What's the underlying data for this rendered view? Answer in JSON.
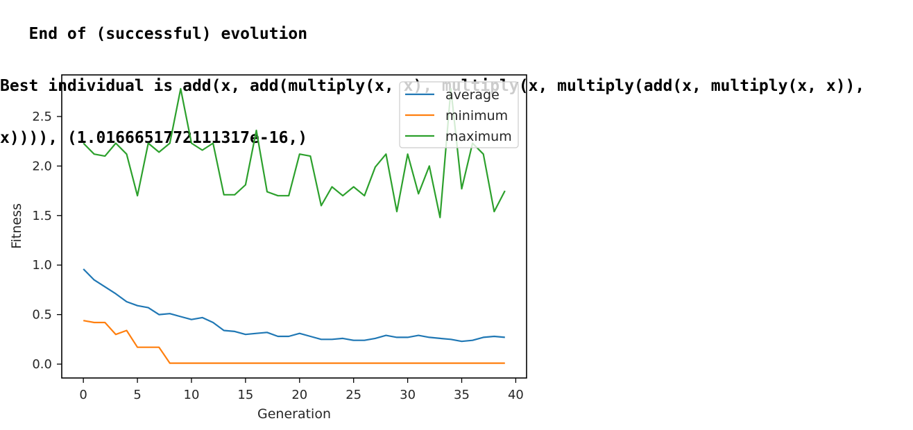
{
  "output": {
    "lines": [
      "   End of (successful) evolution",
      "Best individual is add(x, add(multiply(x, x), multiply(x, multiply(add(x, multiply(x, x)),",
      "x)))), (1.0166651772111317e-16,)"
    ]
  },
  "chart_data": {
    "type": "line",
    "title": "",
    "xlabel": "Generation",
    "ylabel": "Fitness",
    "xlim": [
      -2,
      41
    ],
    "ylim": [
      -0.14,
      2.92
    ],
    "xticks": [
      0,
      5,
      10,
      15,
      20,
      25,
      30,
      35,
      40
    ],
    "yticks": [
      0.0,
      0.5,
      1.0,
      1.5,
      2.0,
      2.5
    ],
    "xtick_labels": [
      "0",
      "5",
      "10",
      "15",
      "20",
      "25",
      "30",
      "35",
      "40"
    ],
    "ytick_labels": [
      "0.0",
      "0.5",
      "1.0",
      "1.5",
      "2.0",
      "2.5"
    ],
    "grid": false,
    "legend_position": "upper-right",
    "x": [
      0,
      1,
      2,
      3,
      4,
      5,
      6,
      7,
      8,
      9,
      10,
      11,
      12,
      13,
      14,
      15,
      16,
      17,
      18,
      19,
      20,
      21,
      22,
      23,
      24,
      25,
      26,
      27,
      28,
      29,
      30,
      31,
      32,
      33,
      34,
      35,
      36,
      37,
      38,
      39
    ],
    "series": [
      {
        "name": "average",
        "color": "#1f77b4",
        "values": [
          0.96,
          0.85,
          0.78,
          0.71,
          0.63,
          0.59,
          0.57,
          0.5,
          0.51,
          0.48,
          0.45,
          0.47,
          0.42,
          0.34,
          0.33,
          0.3,
          0.31,
          0.32,
          0.28,
          0.28,
          0.31,
          0.28,
          0.25,
          0.25,
          0.26,
          0.24,
          0.24,
          0.26,
          0.29,
          0.27,
          0.27,
          0.29,
          0.27,
          0.26,
          0.25,
          0.23,
          0.24,
          0.27,
          0.28,
          0.27
        ]
      },
      {
        "name": "minimum",
        "color": "#ff7f0e",
        "values": [
          0.44,
          0.42,
          0.42,
          0.3,
          0.34,
          0.17,
          0.17,
          0.17,
          0.01,
          0.01,
          0.01,
          0.01,
          0.01,
          0.01,
          0.01,
          0.01,
          0.01,
          0.01,
          0.01,
          0.01,
          0.01,
          0.01,
          0.01,
          0.01,
          0.01,
          0.01,
          0.01,
          0.01,
          0.01,
          0.01,
          0.01,
          0.01,
          0.01,
          0.01,
          0.01,
          0.01,
          0.01,
          0.01,
          0.01,
          0.01
        ]
      },
      {
        "name": "maximum",
        "color": "#2ca02c",
        "values": [
          2.23,
          2.12,
          2.1,
          2.23,
          2.12,
          1.7,
          2.23,
          2.14,
          2.23,
          2.78,
          2.23,
          2.16,
          2.23,
          1.71,
          1.71,
          1.81,
          2.36,
          1.74,
          1.7,
          1.7,
          2.12,
          2.1,
          1.6,
          1.79,
          1.7,
          1.79,
          1.7,
          1.99,
          2.12,
          1.54,
          2.12,
          1.72,
          2.0,
          1.48,
          2.78,
          1.77,
          2.23,
          2.12,
          1.54,
          1.75
        ]
      }
    ]
  }
}
